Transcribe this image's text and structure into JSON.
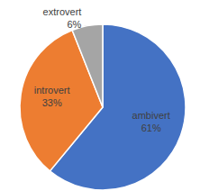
{
  "chart_data": {
    "type": "pie",
    "categories": [
      "ambivert",
      "introvert",
      "extrovert"
    ],
    "values": [
      61,
      33,
      6
    ],
    "value_labels": [
      "61%",
      "33%",
      "6%"
    ],
    "colors": [
      "#4472c4",
      "#ed7d31",
      "#a5a5a5"
    ],
    "data_labels": true
  }
}
